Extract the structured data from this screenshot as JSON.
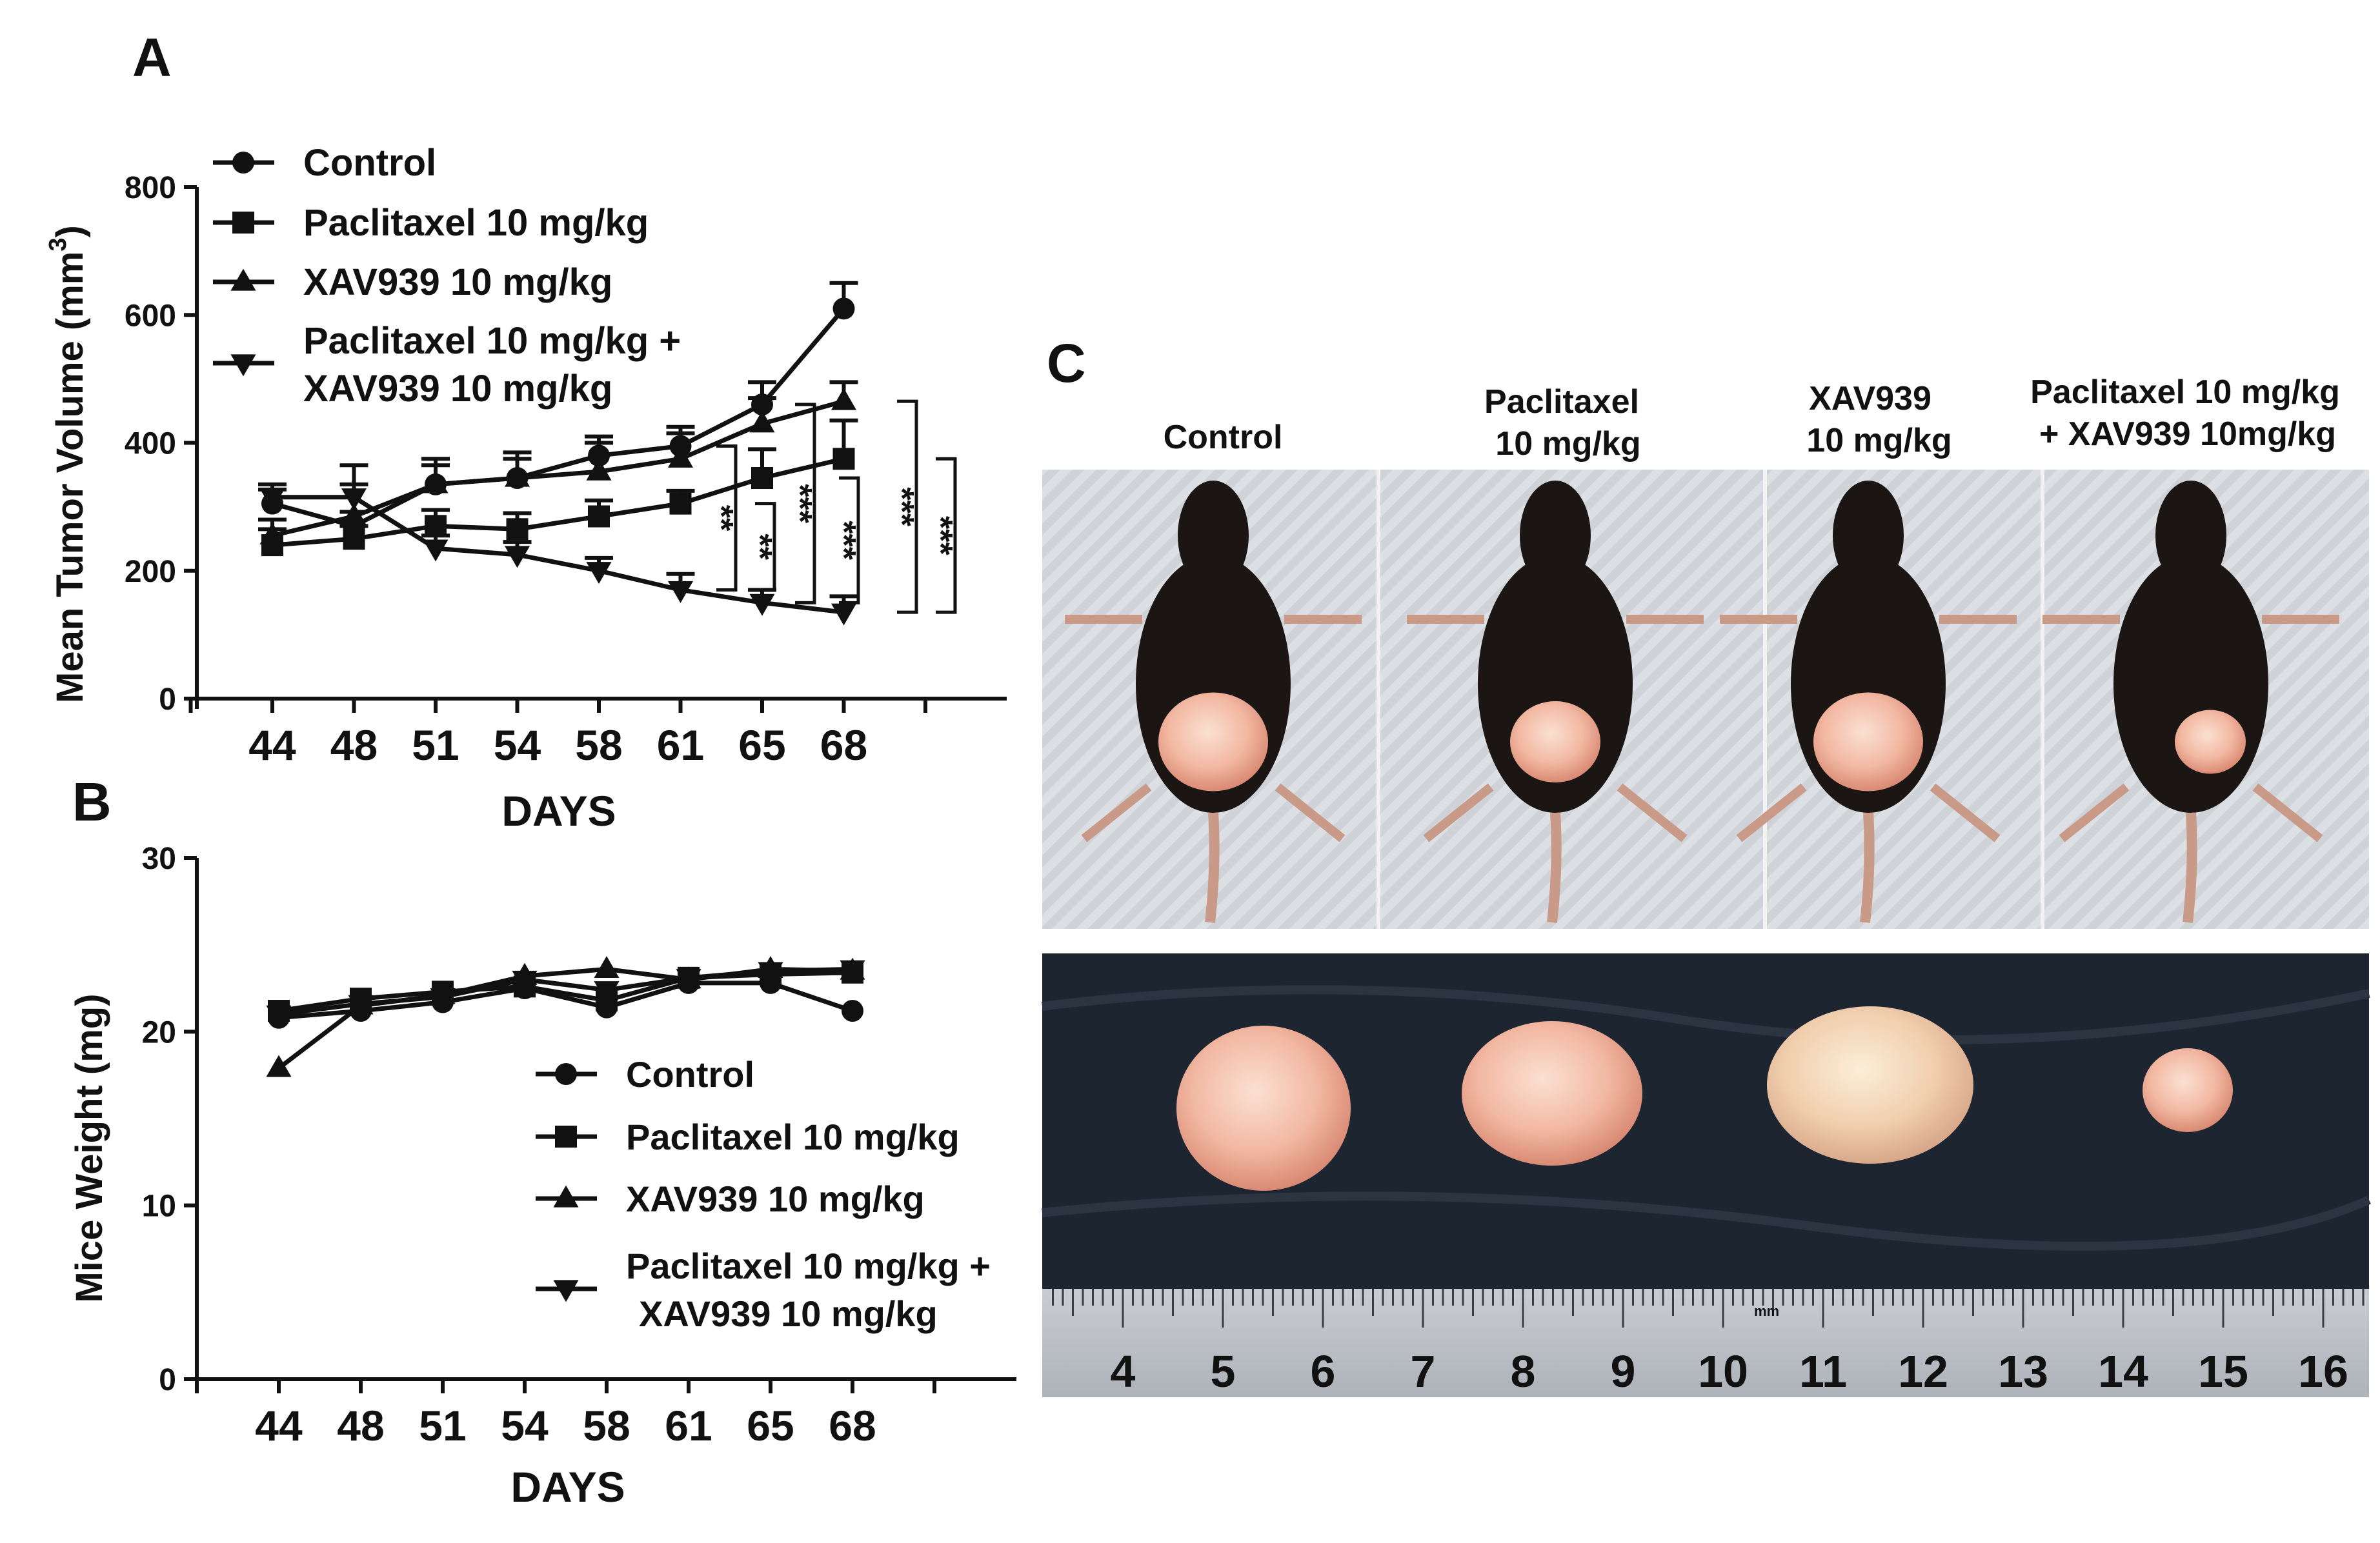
{
  "panels": {
    "a_label": "A",
    "b_label": "B",
    "c_label": "C"
  },
  "chart_data": [
    {
      "type": "line",
      "panel": "A",
      "ylabel_main": "Mean Tumor Volume (mm",
      "ylabel_sup": "3",
      "ylabel_close": ")",
      "xlabel": "DAYS",
      "x": [
        "44",
        "48",
        "51",
        "54",
        "58",
        "61",
        "65",
        "68"
      ],
      "ylim": [
        0,
        800
      ],
      "yticks": [
        "0",
        "200",
        "400",
        "600",
        "800"
      ],
      "legend_position": "top-left",
      "series": [
        {
          "name": "Control",
          "marker": "circle",
          "values": [
            305,
            270,
            335,
            345,
            380,
            395,
            460,
            610
          ],
          "errors": [
            22,
            22,
            30,
            30,
            30,
            30,
            35,
            40
          ]
        },
        {
          "name": "Paclitaxel 10 mg/kg",
          "marker": "square",
          "values": [
            240,
            250,
            270,
            265,
            285,
            305,
            345,
            375
          ],
          "errors": [
            25,
            20,
            25,
            25,
            25,
            20,
            45,
            60
          ]
        },
        {
          "name": "XAV939 10 mg/kg",
          "marker": "triangle-up",
          "values": [
            255,
            285,
            335,
            345,
            355,
            375,
            430,
            465
          ],
          "errors": [
            25,
            80,
            40,
            40,
            45,
            40,
            40,
            30
          ]
        },
        {
          "name_line1": "Paclitaxel 10 mg/kg +",
          "name_line2": "XAV939 10 mg/kg",
          "marker": "triangle-down",
          "values": [
            315,
            315,
            235,
            225,
            200,
            170,
            150,
            135
          ],
          "errors": [
            20,
            20,
            20,
            20,
            20,
            25,
            20,
            25
          ]
        }
      ],
      "annotations": [
        "**",
        "**",
        "***",
        "***",
        "***",
        "***"
      ]
    },
    {
      "type": "line",
      "panel": "B",
      "ylabel": "Mice Weight (mg)",
      "xlabel": "DAYS",
      "x": [
        "44",
        "48",
        "51",
        "54",
        "58",
        "61",
        "65",
        "68"
      ],
      "ylim": [
        0,
        30
      ],
      "yticks": [
        "0",
        "10",
        "20",
        "30"
      ],
      "legend_position": "center-right",
      "series": [
        {
          "name": "Control",
          "marker": "circle",
          "values": [
            20.8,
            21.2,
            21.7,
            22.5,
            21.4,
            22.8,
            22.8,
            21.2
          ]
        },
        {
          "name": "Paclitaxel 10 mg/kg",
          "marker": "square",
          "values": [
            21.2,
            21.9,
            22.3,
            22.6,
            21.8,
            23.1,
            23.3,
            23.4
          ]
        },
        {
          "name": "XAV939 10 mg/kg",
          "marker": "triangle-up",
          "values": [
            17.9,
            21.5,
            22.1,
            23.2,
            23.6,
            23.0,
            23.6,
            23.5
          ]
        },
        {
          "name_line1": "Paclitaxel 10 mg/kg +",
          "name_line2": "XAV939 10 mg/kg",
          "marker": "triangle-down",
          "values": [
            21.0,
            21.6,
            22.0,
            23.0,
            22.4,
            23.1,
            23.5,
            23.6
          ]
        }
      ]
    }
  ],
  "photos": {
    "headers": [
      {
        "line1": "Control",
        "line2": ""
      },
      {
        "line1": "Paclitaxel",
        "line2": "10 mg/kg"
      },
      {
        "line1": "XAV939",
        "line2": "10 mg/kg"
      },
      {
        "line1": "Paclitaxel 10 mg/kg",
        "line2": "+ XAV939 10mg/kg"
      }
    ],
    "ruler_numbers": [
      "4",
      "5",
      "6",
      "7",
      "8",
      "9",
      "10",
      "11",
      "12",
      "13",
      "14",
      "15",
      "16"
    ],
    "ruler_unit": "mm"
  }
}
